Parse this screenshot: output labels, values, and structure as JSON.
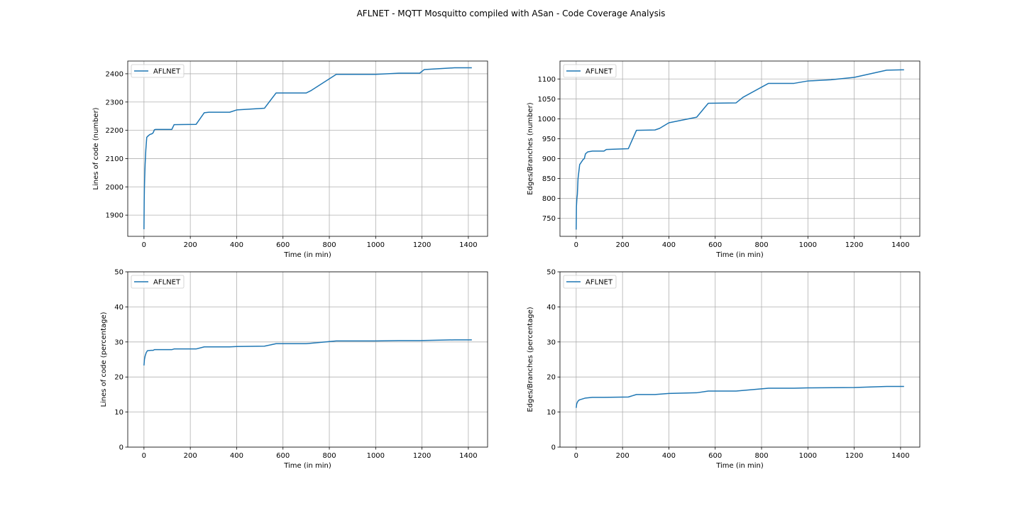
{
  "figure": {
    "title": "AFLNET - MQTT Mosquitto compiled with ASan - Code Coverage Analysis"
  },
  "colors": {
    "series": "#1f77b4",
    "grid": "#b0b0b0",
    "axes": "#000000",
    "legend_border": "#cccccc"
  },
  "chart_data": [
    {
      "type": "line",
      "xlabel": "Time (in min)",
      "ylabel": "Lines of code (number)",
      "xlim": [
        -70,
        1483
      ],
      "ylim": [
        1825,
        2445
      ],
      "xticks": [
        0,
        200,
        400,
        600,
        800,
        1000,
        1200,
        1400
      ],
      "yticks": [
        1900,
        2000,
        2100,
        2200,
        2300,
        2400
      ],
      "grid": true,
      "legend": "upper-left",
      "series": [
        {
          "name": "AFLNET",
          "x": [
            0,
            1,
            2,
            3,
            5,
            8,
            12,
            15,
            25,
            35,
            38,
            40,
            45,
            50,
            120,
            130,
            225,
            260,
            280,
            370,
            400,
            520,
            570,
            700,
            720,
            830,
            1000,
            1100,
            1190,
            1210,
            1340,
            1415
          ],
          "y": [
            1850,
            1950,
            2000,
            2030,
            2080,
            2130,
            2175,
            2178,
            2185,
            2188,
            2190,
            2192,
            2202,
            2203,
            2203,
            2220,
            2221,
            2262,
            2264,
            2264,
            2272,
            2278,
            2332,
            2332,
            2340,
            2398,
            2398,
            2402,
            2402,
            2415,
            2421,
            2421
          ]
        }
      ]
    },
    {
      "type": "line",
      "xlabel": "Time (in min)",
      "ylabel": "Edges/Branches (number)",
      "xlim": [
        -70,
        1483
      ],
      "ylim": [
        705,
        1145
      ],
      "xticks": [
        0,
        200,
        400,
        600,
        800,
        1000,
        1200,
        1400
      ],
      "yticks": [
        750,
        800,
        850,
        900,
        950,
        1000,
        1050,
        1100
      ],
      "grid": true,
      "legend": "upper-left",
      "series": [
        {
          "name": "AFLNET",
          "x": [
            0,
            1,
            3,
            5,
            8,
            12,
            15,
            30,
            35,
            40,
            50,
            70,
            120,
            130,
            225,
            260,
            340,
            360,
            400,
            520,
            570,
            690,
            720,
            830,
            940,
            1000,
            1100,
            1200,
            1340,
            1415
          ],
          "y": [
            722,
            780,
            800,
            810,
            850,
            870,
            885,
            898,
            900,
            912,
            917,
            919,
            919,
            923,
            925,
            971,
            972,
            976,
            990,
            1004,
            1039,
            1040,
            1054,
            1089,
            1089,
            1095,
            1098,
            1104,
            1122,
            1123
          ]
        }
      ]
    },
    {
      "type": "line",
      "xlabel": "Time (in min)",
      "ylabel": "Lines of code (percentage)",
      "xlim": [
        -70,
        1483
      ],
      "ylim": [
        0,
        50
      ],
      "xticks": [
        0,
        200,
        400,
        600,
        800,
        1000,
        1200,
        1400
      ],
      "yticks": [
        0,
        10,
        20,
        30,
        40,
        50
      ],
      "grid": true,
      "legend": "upper-left",
      "series": [
        {
          "name": "AFLNET",
          "x": [
            0,
            2,
            5,
            10,
            15,
            30,
            40,
            45,
            120,
            130,
            225,
            260,
            370,
            400,
            520,
            570,
            700,
            830,
            1000,
            1100,
            1190,
            1340,
            1415
          ],
          "y": [
            23.3,
            25.0,
            26.0,
            27.0,
            27.5,
            27.6,
            27.6,
            27.8,
            27.8,
            28.0,
            28.0,
            28.6,
            28.6,
            28.7,
            28.8,
            29.5,
            29.5,
            30.3,
            30.3,
            30.4,
            30.4,
            30.6,
            30.6
          ]
        }
      ]
    },
    {
      "type": "line",
      "xlabel": "Time (in min)",
      "ylabel": "Edges/Branches (percentage)",
      "xlim": [
        -70,
        1483
      ],
      "ylim": [
        0,
        50
      ],
      "xticks": [
        0,
        200,
        400,
        600,
        800,
        1000,
        1200,
        1400
      ],
      "yticks": [
        0,
        10,
        20,
        30,
        40,
        50
      ],
      "grid": true,
      "legend": "upper-left",
      "series": [
        {
          "name": "AFLNET",
          "x": [
            0,
            2,
            5,
            10,
            15,
            40,
            70,
            120,
            225,
            260,
            340,
            400,
            520,
            570,
            690,
            830,
            940,
            1000,
            1200,
            1340,
            1415
          ],
          "y": [
            11.2,
            12.3,
            12.8,
            13.3,
            13.5,
            14.0,
            14.2,
            14.2,
            14.3,
            15.0,
            15.0,
            15.3,
            15.5,
            16.0,
            16.0,
            16.8,
            16.8,
            16.9,
            17.0,
            17.3,
            17.3
          ]
        }
      ]
    }
  ]
}
